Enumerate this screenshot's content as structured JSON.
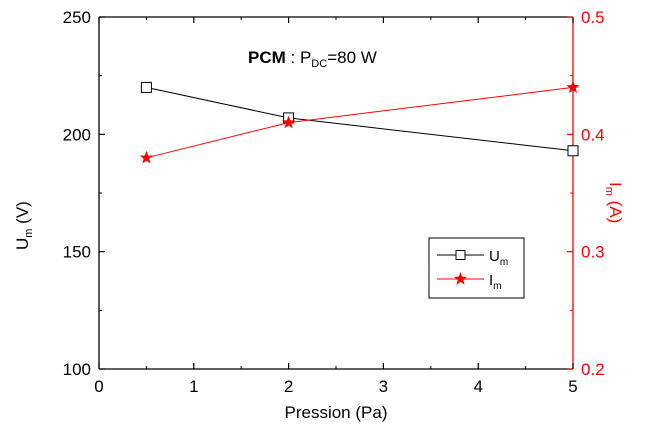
{
  "chart_data": {
    "type": "line",
    "annotation": {
      "bold": "PCM",
      "rest": " : P",
      "sub": "DC",
      "tail": "=80 W"
    },
    "xlabel": "Pression (Pa)",
    "ylabel_left": {
      "main": "U",
      "sub": "m",
      "unit": " (V)"
    },
    "ylabel_right": {
      "main": "I",
      "sub": "m",
      "unit": " (A)"
    },
    "xlim": [
      0,
      5
    ],
    "ylim_left": [
      100,
      250
    ],
    "ylim_right": [
      0.2,
      0.5
    ],
    "x_ticks": [
      "0",
      "1",
      "2",
      "3",
      "4",
      "5"
    ],
    "y_left_ticks": [
      "100",
      "150",
      "200",
      "250"
    ],
    "y_right_ticks": [
      "0.2",
      "0.3",
      "0.4",
      "0.5"
    ],
    "series": [
      {
        "name": "U",
        "name_sub": "m",
        "axis": "left",
        "color": "#000000",
        "marker": "square-open",
        "x": [
          0.5,
          2,
          5
        ],
        "values": [
          220,
          207,
          193
        ]
      },
      {
        "name": "I",
        "name_sub": "m",
        "axis": "right",
        "color": "#ff0000",
        "marker": "star",
        "x": [
          0.5,
          2,
          5
        ],
        "values": [
          0.38,
          0.41,
          0.44
        ]
      }
    ],
    "legend_position": "lower-right"
  }
}
